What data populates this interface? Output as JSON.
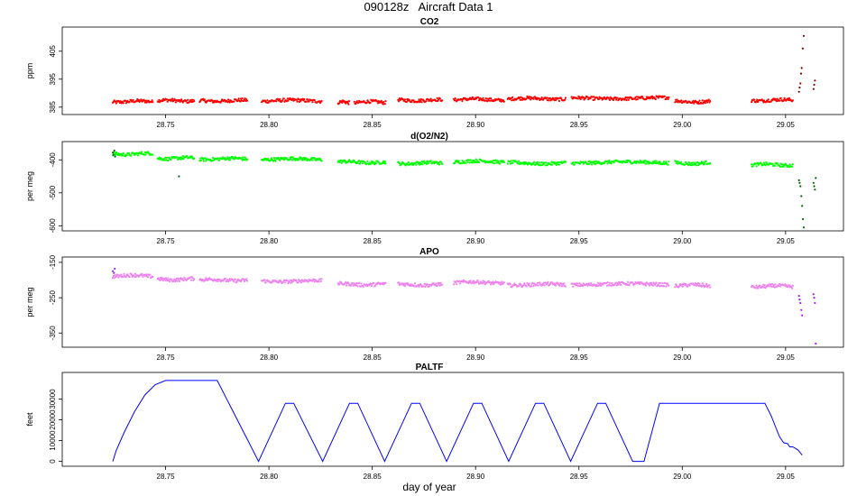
{
  "page": {
    "title": "090128z   Aircraft Data 1"
  },
  "chart_data": [
    {
      "type": "scatter",
      "title": "CO2",
      "ylabel": "ppm",
      "xlim": [
        28.7,
        29.078
      ],
      "ylim": [
        383,
        413
      ],
      "yticks": [
        385,
        395,
        405
      ],
      "xticks": [
        28.75,
        28.8,
        28.85,
        28.9,
        28.95,
        29.0,
        29.05
      ],
      "xtick_labels": [
        "28.75",
        "28.80",
        "28.85",
        "28.90",
        "28.95",
        "29.00",
        "29.05"
      ],
      "series": [
        {
          "color": "#ff0000",
          "segments": [
            [
              28.7245,
              28.7438,
              387.0
            ],
            [
              28.7462,
              28.7638,
              387.3
            ],
            [
              28.7665,
              28.7895,
              387.3
            ],
            [
              28.7965,
              28.8255,
              387.3
            ],
            [
              28.8335,
              28.8388,
              386.8
            ],
            [
              28.8413,
              28.8565,
              386.8
            ],
            [
              28.8625,
              28.8838,
              387.5
            ],
            [
              28.8895,
              28.9138,
              387.7
            ],
            [
              28.9155,
              28.9435,
              388.0
            ],
            [
              28.9465,
              28.9935,
              388.2
            ],
            [
              28.9965,
              29.0135,
              387.0
            ],
            [
              29.0335,
              29.0535,
              387.5
            ]
          ]
        },
        {
          "color": "#8b0000",
          "points": [
            [
              29.0565,
              390.5
            ],
            [
              29.0568,
              392.0
            ],
            [
              29.0572,
              393.5
            ],
            [
              29.0575,
              397.0
            ],
            [
              29.0578,
              399.0
            ],
            [
              29.0583,
              406.0
            ],
            [
              29.0588,
              410.5
            ],
            [
              29.0635,
              391.5
            ],
            [
              29.0638,
              393.0
            ],
            [
              29.0642,
              394.5
            ]
          ]
        }
      ]
    },
    {
      "type": "scatter",
      "title": "d(O2/N2)",
      "ylabel": "per meg",
      "xlim": [
        28.7,
        29.078
      ],
      "ylim": [
        -610,
        -350
      ],
      "yticks": [
        -400,
        -500,
        -600
      ],
      "xticks": [
        28.75,
        28.8,
        28.85,
        28.9,
        28.95,
        29.0,
        29.05
      ],
      "xtick_labels": [
        "28.75",
        "28.80",
        "28.85",
        "28.90",
        "28.95",
        "29.00",
        "29.05"
      ],
      "series": [
        {
          "color": "#00ff00",
          "segments": [
            [
              28.7245,
              28.7438,
              -382
            ],
            [
              28.7462,
              28.7638,
              -395
            ],
            [
              28.7665,
              28.7895,
              -397
            ],
            [
              28.7965,
              28.8255,
              -398
            ],
            [
              28.8335,
              28.8565,
              -407
            ],
            [
              28.8625,
              28.8838,
              -410
            ],
            [
              28.8895,
              28.9138,
              -405
            ],
            [
              28.9155,
              28.9435,
              -410
            ],
            [
              28.9465,
              28.9935,
              -408
            ],
            [
              28.9965,
              29.0135,
              -410
            ],
            [
              29.0335,
              29.0535,
              -415
            ]
          ]
        },
        {
          "color": "#006400",
          "points": [
            [
              28.7245,
              -378
            ],
            [
              28.7248,
              -385
            ],
            [
              28.7252,
              -372
            ],
            [
              28.7256,
              -390
            ],
            [
              28.7565,
              -450
            ],
            [
              29.0565,
              -462
            ],
            [
              29.0568,
              -470
            ],
            [
              29.0572,
              -480
            ],
            [
              29.0576,
              -510
            ],
            [
              29.058,
              -540
            ],
            [
              29.0584,
              -580
            ],
            [
              29.0588,
              -605
            ],
            [
              29.0635,
              -470
            ],
            [
              29.0638,
              -480
            ],
            [
              29.0642,
              -490
            ],
            [
              29.0646,
              -455
            ]
          ]
        }
      ]
    },
    {
      "type": "scatter",
      "title": "APO",
      "ylabel": "per meg",
      "xlim": [
        28.7,
        29.078
      ],
      "ylim": [
        -385,
        -140
      ],
      "yticks": [
        -150,
        -250,
        -350
      ],
      "xticks": [
        28.75,
        28.8,
        28.85,
        28.9,
        28.95,
        29.0,
        29.05
      ],
      "xtick_labels": [
        "28.75",
        "28.80",
        "28.85",
        "28.90",
        "28.95",
        "29.00",
        "29.05"
      ],
      "series": [
        {
          "color": "#ee82ee",
          "segments": [
            [
              28.7245,
              28.7438,
              -188
            ],
            [
              28.7462,
              28.7638,
              -198
            ],
            [
              28.7665,
              28.7895,
              -200
            ],
            [
              28.7965,
              28.8255,
              -203
            ],
            [
              28.8335,
              28.8565,
              -212
            ],
            [
              28.8625,
              28.8838,
              -213
            ],
            [
              28.8895,
              28.9138,
              -207
            ],
            [
              28.9155,
              28.9435,
              -213
            ],
            [
              28.9465,
              28.9935,
              -212
            ],
            [
              28.9965,
              29.0135,
              -215
            ],
            [
              29.0335,
              29.0535,
              -218
            ]
          ]
        },
        {
          "color": "#a020f0",
          "points": [
            [
              28.7245,
              -175
            ],
            [
              28.725,
              -180
            ],
            [
              28.7254,
              -168
            ],
            [
              29.0565,
              -245
            ],
            [
              29.0568,
              -255
            ],
            [
              29.0572,
              -265
            ],
            [
              29.0576,
              -285
            ],
            [
              29.058,
              -300
            ],
            [
              29.0635,
              -240
            ],
            [
              29.0638,
              -250
            ],
            [
              29.0642,
              -265
            ],
            [
              29.0646,
              -380
            ]
          ]
        }
      ]
    },
    {
      "type": "line",
      "title": "PALTF",
      "ylabel": "feet",
      "xlabel": "day of year",
      "xlim": [
        28.7,
        29.078
      ],
      "ylim": [
        -1500,
        42000
      ],
      "yticks": [
        0,
        10000,
        20000,
        30000
      ],
      "xticks": [
        28.75,
        28.8,
        28.85,
        28.9,
        28.95,
        29.0,
        29.05
      ],
      "xtick_labels": [
        "28.75",
        "28.80",
        "28.85",
        "28.90",
        "28.95",
        "29.00",
        "29.05"
      ],
      "series": [
        {
          "color": "#0000ff",
          "x": [
            28.7245,
            28.726,
            28.73,
            28.735,
            28.74,
            28.745,
            28.75,
            28.775,
            28.795,
            28.808,
            28.812,
            28.826,
            28.839,
            28.843,
            28.856,
            28.869,
            28.873,
            28.886,
            28.899,
            28.903,
            28.916,
            28.929,
            28.933,
            28.946,
            28.959,
            28.963,
            28.976,
            28.9815,
            28.989,
            29.04,
            29.043,
            29.045,
            29.047,
            29.049,
            29.051,
            29.052,
            29.0535,
            29.056,
            29.058
          ],
          "y": [
            0,
            5000,
            14000,
            24000,
            32000,
            37000,
            39000,
            39000,
            0,
            28000,
            28000,
            0,
            28000,
            28000,
            0,
            28000,
            28000,
            0,
            28000,
            28000,
            0,
            28000,
            28000,
            0,
            28000,
            28000,
            0,
            0,
            28000,
            28000,
            22000,
            17000,
            12000,
            9000,
            8500,
            7000,
            7000,
            5500,
            3000
          ]
        }
      ]
    }
  ]
}
